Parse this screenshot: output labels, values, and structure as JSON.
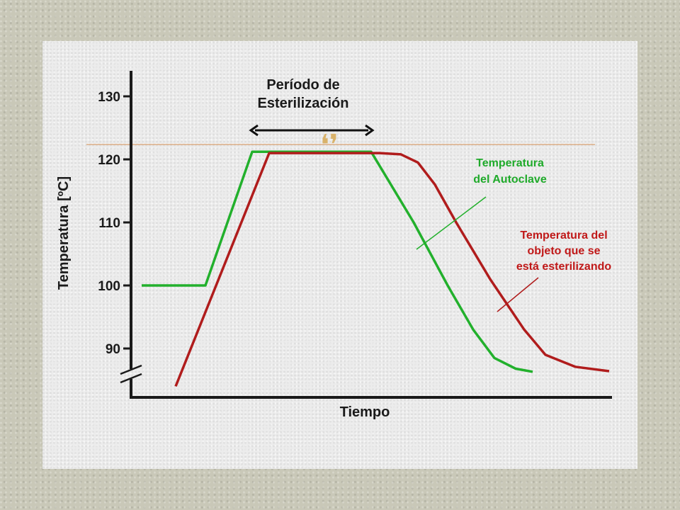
{
  "chart_data": {
    "type": "line",
    "title": "",
    "xlabel": "Tiempo",
    "ylabel": "Temperatura [ºC]",
    "ylim": [
      85,
      132
    ],
    "yticks": [
      90,
      100,
      110,
      120,
      130
    ],
    "grid": false,
    "period_label": [
      "Período de",
      "Esterilización"
    ],
    "period_range": [
      2.6,
      5.4
    ],
    "series": [
      {
        "name": "Temperatura del Autoclave",
        "label_lines": [
          "Temperatura",
          "del Autoclave"
        ],
        "color": "#22b02c",
        "points": [
          [
            0,
            100
          ],
          [
            1.5,
            100
          ],
          [
            2.6,
            121.2
          ],
          [
            5.4,
            121.2
          ],
          [
            6.4,
            110
          ],
          [
            7.2,
            100
          ],
          [
            7.8,
            93
          ],
          [
            8.3,
            88.5
          ],
          [
            8.8,
            86.8
          ],
          [
            9.2,
            86.3
          ]
        ]
      },
      {
        "name": "Temperatura del objeto que se está esterilizando",
        "label_lines": [
          "Temperatura del",
          "objeto que se",
          "está esterilizando"
        ],
        "color": "#b01c1c",
        "points": [
          [
            0.8,
            84
          ],
          [
            3.0,
            121
          ],
          [
            5.6,
            121
          ],
          [
            6.1,
            120.8
          ],
          [
            6.5,
            119.5
          ],
          [
            6.9,
            116
          ],
          [
            7.4,
            110
          ],
          [
            8.2,
            101
          ],
          [
            9.0,
            93
          ],
          [
            9.5,
            89
          ],
          [
            10.2,
            87.1
          ],
          [
            11.0,
            86.4
          ]
        ]
      }
    ]
  }
}
